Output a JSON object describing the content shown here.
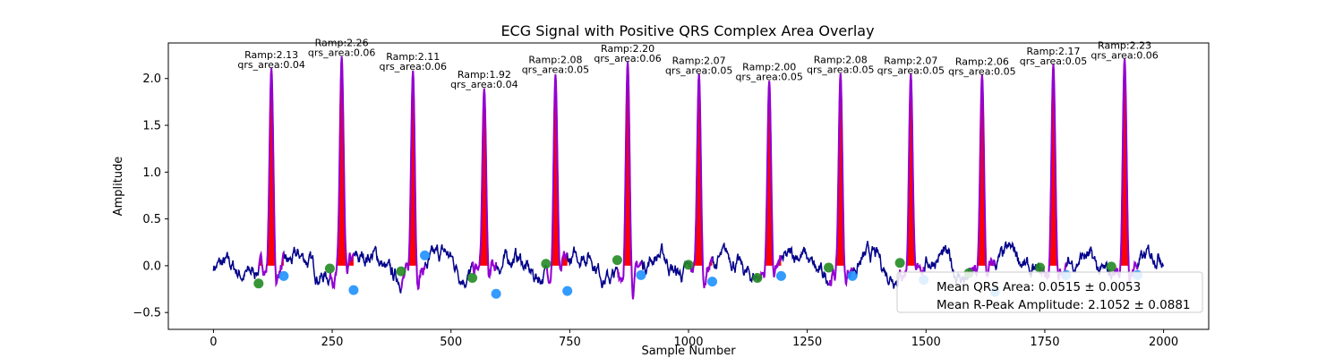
{
  "chart_data": {
    "type": "line",
    "title": "ECG Signal with Positive QRS Complex Area Overlay",
    "xlabel": "Sample Number",
    "ylabel": "Amplitude",
    "xlim": [
      -95,
      2095
    ],
    "ylim": [
      -0.68,
      2.38
    ],
    "xticks": [
      0,
      250,
      500,
      750,
      1000,
      1250,
      1500,
      1750,
      2000
    ],
    "yticks": [
      -0.5,
      0.0,
      0.5,
      1.0,
      1.5,
      2.0
    ],
    "ytick_labels": [
      "−0.5",
      "0.0",
      "0.5",
      "1.0",
      "1.5",
      "2.0"
    ],
    "colors": {
      "signal": "#00008b",
      "qrs_segment": "#9400d3",
      "qrs_fill": "#ff0000",
      "q_marker": "#228b22",
      "s_marker": "#1e90ff"
    },
    "beats": [
      {
        "q_x": 95,
        "q_y": -0.19,
        "r_x": 122,
        "r_y": 2.13,
        "s_x": 148,
        "s_y": -0.11,
        "amp_label": "Ramp:2.13",
        "area_label": "qrs_area:0.04"
      },
      {
        "q_x": 245,
        "q_y": -0.03,
        "r_x": 270,
        "r_y": 2.26,
        "s_x": 295,
        "s_y": -0.26,
        "amp_label": "Ramp:2.26",
        "area_label": "qrs_area:0.06"
      },
      {
        "q_x": 395,
        "q_y": -0.06,
        "r_x": 420,
        "r_y": 2.11,
        "s_x": 445,
        "s_y": 0.11,
        "amp_label": "Ramp:2.11",
        "area_label": "qrs_area:0.06"
      },
      {
        "q_x": 545,
        "q_y": -0.13,
        "r_x": 570,
        "r_y": 1.92,
        "s_x": 595,
        "s_y": -0.3,
        "amp_label": "Ramp:1.92",
        "area_label": "qrs_area:0.04"
      },
      {
        "q_x": 700,
        "q_y": 0.02,
        "r_x": 720,
        "r_y": 2.08,
        "s_x": 745,
        "s_y": -0.27,
        "amp_label": "Ramp:2.08",
        "area_label": "qrs_area:0.05"
      },
      {
        "q_x": 850,
        "q_y": 0.06,
        "r_x": 872,
        "r_y": 2.2,
        "s_x": 900,
        "s_y": -0.1,
        "amp_label": "Ramp:2.20",
        "area_label": "qrs_area:0.06"
      },
      {
        "q_x": 1000,
        "q_y": 0.01,
        "r_x": 1022,
        "r_y": 2.07,
        "s_x": 1050,
        "s_y": -0.17,
        "amp_label": "Ramp:2.07",
        "area_label": "qrs_area:0.05"
      },
      {
        "q_x": 1145,
        "q_y": -0.13,
        "r_x": 1170,
        "r_y": 2.0,
        "s_x": 1195,
        "s_y": -0.11,
        "amp_label": "Ramp:2.00",
        "area_label": "qrs_area:0.05"
      },
      {
        "q_x": 1295,
        "q_y": -0.02,
        "r_x": 1320,
        "r_y": 2.08,
        "s_x": 1345,
        "s_y": -0.11,
        "amp_label": "Ramp:2.08",
        "area_label": "qrs_area:0.05"
      },
      {
        "q_x": 1445,
        "q_y": 0.03,
        "r_x": 1468,
        "r_y": 2.07,
        "s_x": 1495,
        "s_y": -0.15,
        "amp_label": "Ramp:2.07",
        "area_label": "qrs_area:0.05"
      },
      {
        "q_x": 1590,
        "q_y": -0.08,
        "r_x": 1618,
        "r_y": 2.06,
        "s_x": 1645,
        "s_y": -0.28,
        "amp_label": "Ramp:2.06",
        "area_label": "qrs_area:0.05"
      },
      {
        "q_x": 1740,
        "q_y": -0.02,
        "r_x": 1768,
        "r_y": 2.17,
        "s_x": 1795,
        "s_y": -0.1,
        "amp_label": "Ramp:2.17",
        "area_label": "qrs_area:0.05"
      },
      {
        "q_x": 1890,
        "q_y": -0.01,
        "r_x": 1918,
        "r_y": 2.23,
        "s_x": 1945,
        "s_y": -0.1,
        "amp_label": "Ramp:2.23",
        "area_label": "qrs_area:0.06"
      }
    ],
    "legend": {
      "placement": "lower-right",
      "entries": [
        "Mean QRS Area: 0.0515 ± 0.0053",
        "Mean R-Peak Amplitude: 2.1052 ± 0.0881"
      ]
    }
  }
}
